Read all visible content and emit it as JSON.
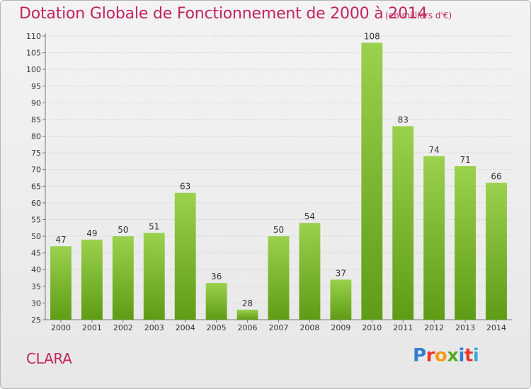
{
  "title": "Dotation Globale de Fonctionnement de 2000 à 2014",
  "unit_note": "(en milliers d'€)",
  "commune": "CLARA",
  "logo": {
    "text": "Proxiti",
    "letter_colors": [
      "#2f7fd1",
      "#e8372a",
      "#f29a1d",
      "#5aa829",
      "#2f7fd1",
      "#e8372a",
      "#3aaad9"
    ]
  },
  "colors": {
    "accent": "#c2245f",
    "bar": "#7ab828"
  },
  "chart_data": {
    "type": "bar",
    "title": "Dotation Globale de Fonctionnement de 2000 à 2014",
    "categories": [
      "2000",
      "2001",
      "2002",
      "2003",
      "2004",
      "2005",
      "2006",
      "2007",
      "2008",
      "2009",
      "2010",
      "2011",
      "2012",
      "2013",
      "2014"
    ],
    "values": [
      47,
      49,
      50,
      51,
      63,
      36,
      28,
      50,
      54,
      37,
      108,
      83,
      74,
      71,
      66
    ],
    "ylim": [
      25,
      110
    ],
    "yticks": [
      25,
      30,
      35,
      40,
      45,
      50,
      55,
      60,
      65,
      70,
      75,
      80,
      85,
      90,
      95,
      100,
      105,
      110
    ],
    "grid": true
  }
}
